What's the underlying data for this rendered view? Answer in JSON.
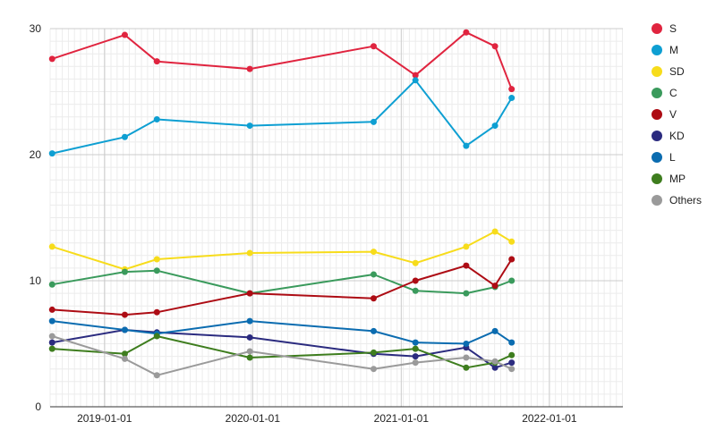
{
  "chart_data": {
    "type": "line",
    "title": "",
    "xlabel": "",
    "ylabel": "",
    "x_type": "date",
    "xlim": [
      "2018-08-20",
      "2022-07-01"
    ],
    "ylim": [
      0,
      30
    ],
    "y_ticks": [
      0,
      10,
      20,
      30
    ],
    "x_ticks": [
      "2019-01-01",
      "2020-01-01",
      "2021-01-01",
      "2022-01-01"
    ],
    "grid": true,
    "legend_position": "right",
    "series": [
      {
        "name": "S",
        "color": "#e0243f",
        "points": [
          [
            "2018-08-25",
            27.6
          ],
          [
            "2019-02-20",
            29.5
          ],
          [
            "2019-05-10",
            27.4
          ],
          [
            "2019-12-25",
            26.8
          ],
          [
            "2020-10-25",
            28.6
          ],
          [
            "2021-02-05",
            26.3
          ],
          [
            "2021-06-10",
            29.7
          ],
          [
            "2021-08-20",
            28.6
          ],
          [
            "2021-09-30",
            25.2
          ]
        ]
      },
      {
        "name": "M",
        "color": "#0e9fd2",
        "points": [
          [
            "2018-08-25",
            20.1
          ],
          [
            "2019-02-20",
            21.4
          ],
          [
            "2019-05-10",
            22.8
          ],
          [
            "2019-12-25",
            22.3
          ],
          [
            "2020-10-25",
            22.6
          ],
          [
            "2021-02-05",
            25.9
          ],
          [
            "2021-06-10",
            20.7
          ],
          [
            "2021-08-20",
            22.3
          ],
          [
            "2021-09-30",
            24.5
          ]
        ]
      },
      {
        "name": "SD",
        "color": "#f7dc1b",
        "points": [
          [
            "2018-08-25",
            12.7
          ],
          [
            "2019-02-20",
            10.9
          ],
          [
            "2019-05-10",
            11.7
          ],
          [
            "2019-12-25",
            12.2
          ],
          [
            "2020-10-25",
            12.3
          ],
          [
            "2021-02-05",
            11.4
          ],
          [
            "2021-06-10",
            12.7
          ],
          [
            "2021-08-20",
            13.9
          ],
          [
            "2021-09-30",
            13.1
          ]
        ]
      },
      {
        "name": "C",
        "color": "#3a9a5c",
        "points": [
          [
            "2018-08-25",
            9.7
          ],
          [
            "2019-02-20",
            10.7
          ],
          [
            "2019-05-10",
            10.8
          ],
          [
            "2019-12-25",
            9.0
          ],
          [
            "2020-10-25",
            10.5
          ],
          [
            "2021-02-05",
            9.2
          ],
          [
            "2021-06-10",
            9.0
          ],
          [
            "2021-08-20",
            9.5
          ],
          [
            "2021-09-30",
            10.0
          ]
        ]
      },
      {
        "name": "V",
        "color": "#ad0c14",
        "points": [
          [
            "2018-08-25",
            7.7
          ],
          [
            "2019-02-20",
            7.3
          ],
          [
            "2019-05-10",
            7.5
          ],
          [
            "2019-12-25",
            9.0
          ],
          [
            "2020-10-25",
            8.6
          ],
          [
            "2021-02-05",
            10.0
          ],
          [
            "2021-06-10",
            11.2
          ],
          [
            "2021-08-20",
            9.6
          ],
          [
            "2021-09-30",
            11.7
          ]
        ]
      },
      {
        "name": "KD",
        "color": "#2b2b7f",
        "points": [
          [
            "2018-08-25",
            5.1
          ],
          [
            "2019-02-20",
            6.1
          ],
          [
            "2019-05-10",
            5.9
          ],
          [
            "2019-12-25",
            5.5
          ],
          [
            "2020-10-25",
            4.2
          ],
          [
            "2021-02-05",
            4.0
          ],
          [
            "2021-06-10",
            4.7
          ],
          [
            "2021-08-20",
            3.1
          ],
          [
            "2021-09-30",
            3.5
          ]
        ]
      },
      {
        "name": "L",
        "color": "#0b6cb0",
        "points": [
          [
            "2018-08-25",
            6.8
          ],
          [
            "2019-02-20",
            6.1
          ],
          [
            "2019-05-10",
            5.8
          ],
          [
            "2019-12-25",
            6.8
          ],
          [
            "2020-10-25",
            6.0
          ],
          [
            "2021-02-05",
            5.1
          ],
          [
            "2021-06-10",
            5.0
          ],
          [
            "2021-08-20",
            6.0
          ],
          [
            "2021-09-30",
            5.1
          ]
        ]
      },
      {
        "name": "MP",
        "color": "#3e7d1e",
        "points": [
          [
            "2018-08-25",
            4.6
          ],
          [
            "2019-02-20",
            4.2
          ],
          [
            "2019-05-10",
            5.6
          ],
          [
            "2019-12-25",
            3.9
          ],
          [
            "2020-10-25",
            4.3
          ],
          [
            "2021-02-05",
            4.6
          ],
          [
            "2021-06-10",
            3.1
          ],
          [
            "2021-08-20",
            3.5
          ],
          [
            "2021-09-30",
            4.1
          ]
        ]
      },
      {
        "name": "Others",
        "color": "#9a9a9a",
        "points": [
          [
            "2018-08-25",
            5.6
          ],
          [
            "2019-02-20",
            3.8
          ],
          [
            "2019-05-10",
            2.5
          ],
          [
            "2019-12-25",
            4.4
          ],
          [
            "2020-10-25",
            3.0
          ],
          [
            "2021-02-05",
            3.5
          ],
          [
            "2021-06-10",
            3.9
          ],
          [
            "2021-08-20",
            3.6
          ],
          [
            "2021-09-30",
            3.0
          ]
        ]
      }
    ]
  }
}
